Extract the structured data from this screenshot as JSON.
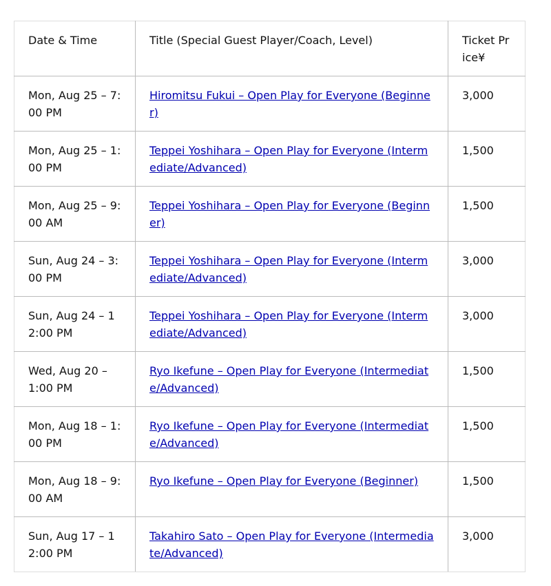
{
  "headers": [
    "Date & Time",
    "Title (Special Guest Player/Coach, Level)",
    "Ticket Price¥"
  ],
  "rows": [
    {
      "date": "Mon, Aug 25 – 7:00 PM",
      "title": "Hiromitsu Fukui – Open Play for Everyone (Beginner)",
      "price": "3,000"
    },
    {
      "date": "Mon, Aug 25 – 1:00 PM",
      "title": "Teppei Yoshihara – Open Play for Everyone (Intermediate/Advanced)",
      "price": "1,500"
    },
    {
      "date": "Mon, Aug 25 – 9:00 AM",
      "title": "Teppei Yoshihara – Open Play for Everyone (Beginner)",
      "price": "1,500"
    },
    {
      "date": "Sun, Aug 24 – 3:00 PM",
      "title": "Teppei Yoshihara – Open Play for Everyone (Intermediate/Advanced)",
      "price": "3,000"
    },
    {
      "date": "Sun, Aug 24 – 12:00 PM",
      "title": "Teppei Yoshihara – Open Play for Everyone (Intermediate/Advanced)",
      "price": "3,000"
    },
    {
      "date": "Wed, Aug 20 – 1:00 PM",
      "title": "Ryo Ikefune – Open Play for Everyone (Intermediate/Advanced)",
      "price": "1,500"
    },
    {
      "date": "Mon, Aug 18 – 1:00 PM",
      "title": "Ryo Ikefune – Open Play for Everyone (Intermediate/Advanced)",
      "price": "1,500"
    },
    {
      "date": "Mon, Aug 18 – 9:00 AM",
      "title": "Ryo Ikefune – Open Play for Everyone (Beginner)",
      "price": "1,500"
    },
    {
      "date": "Sun, Aug 17 – 12:00 PM",
      "title": "Takahiro Sato – Open Play for Everyone (Intermediate/Advanced)",
      "price": "3,000"
    }
  ]
}
